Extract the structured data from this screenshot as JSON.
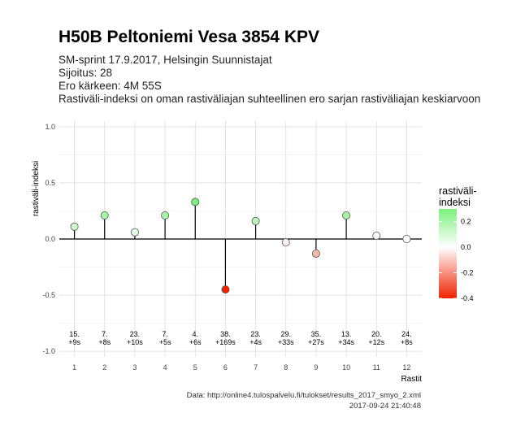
{
  "header": {
    "title": "H50B Peltoniemi Vesa 3854 KPV",
    "subtitle_lines": [
      "SM-sprint 17.9.2017, Helsingin Suunnistajat",
      "Sijoitus: 28",
      "Ero kärkeen: 4M 55S",
      "Rastiväli-indeksi on oman rastiväliajan suhteellinen ero sarjan rastiväliajan keskiarvoon"
    ]
  },
  "caption": {
    "source": "Data: http://online4.tulospalvelu.fi/tulokset/results_2017_smyo_2.xml",
    "timestamp": "2017-09-24 21:40:48"
  },
  "chart_data": {
    "type": "scatter",
    "xlabel": "Rastit",
    "ylabel": "rastiväli-indeksi",
    "xlim": [
      0.5,
      12.5
    ],
    "ylim": [
      -1.0,
      1.0
    ],
    "x_ticks": [
      1,
      2,
      3,
      4,
      5,
      6,
      7,
      8,
      9,
      10,
      11,
      12
    ],
    "y_ticks": [
      -1.0,
      -0.5,
      0.0,
      0.5,
      1.0
    ],
    "y_tick_labels": [
      "-1.0",
      "-0.5",
      "0.0",
      "0.5",
      "1.0"
    ],
    "grid": true,
    "points": [
      {
        "x": 1,
        "y": 0.11,
        "rank": "15.",
        "diff": "+9s"
      },
      {
        "x": 2,
        "y": 0.21,
        "rank": "7.",
        "diff": "+8s"
      },
      {
        "x": 3,
        "y": 0.06,
        "rank": "23.",
        "diff": "+10s"
      },
      {
        "x": 4,
        "y": 0.21,
        "rank": "7.",
        "diff": "+5s"
      },
      {
        "x": 5,
        "y": 0.33,
        "rank": "4.",
        "diff": "+6s"
      },
      {
        "x": 6,
        "y": -0.45,
        "rank": "38.",
        "diff": "+169s"
      },
      {
        "x": 7,
        "y": 0.16,
        "rank": "23.",
        "diff": "+4s"
      },
      {
        "x": 8,
        "y": -0.03,
        "rank": "29.",
        "diff": "+33s"
      },
      {
        "x": 9,
        "y": -0.13,
        "rank": "35.",
        "diff": "+27s"
      },
      {
        "x": 10,
        "y": 0.21,
        "rank": "13.",
        "diff": "+34s"
      },
      {
        "x": 11,
        "y": 0.03,
        "rank": "20.",
        "diff": "+12s"
      },
      {
        "x": 12,
        "y": 0.0,
        "rank": "24.",
        "diff": "+8s"
      }
    ],
    "legend": {
      "title": "rastiväli-\nindeksi",
      "position": "right",
      "range": [
        -0.4,
        0.3
      ],
      "ticks": [
        0.2,
        0.0,
        -0.2,
        -0.4
      ],
      "tick_labels": [
        "0.2",
        "0.0",
        "-0.2",
        "-0.4"
      ],
      "colors": {
        "high": "#7cf07c",
        "mid": "#ffffff",
        "low": "#ee2200"
      }
    }
  }
}
